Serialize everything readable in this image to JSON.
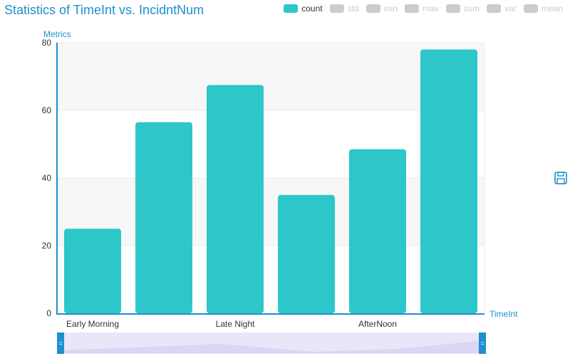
{
  "chart_data": {
    "type": "bar",
    "title": "Statistics of TimeInt vs. IncidntNum",
    "xlabel": "TimeInt",
    "ylabel": "Metrics",
    "categories": [
      "Early Morning",
      "",
      "Late Night",
      "",
      "AfterNoon",
      ""
    ],
    "series": [
      {
        "name": "count",
        "values": [
          25,
          56.5,
          67.5,
          35,
          48.5,
          78
        ]
      }
    ],
    "ylim": [
      0,
      80
    ],
    "yticks": [
      0,
      20,
      40,
      60,
      80
    ],
    "grid": true,
    "legend_position": "top-right"
  },
  "legend": {
    "items": [
      {
        "label": "count",
        "active": true
      },
      {
        "label": "std",
        "active": false
      },
      {
        "label": "min",
        "active": false
      },
      {
        "label": "max",
        "active": false
      },
      {
        "label": "sum",
        "active": false
      },
      {
        "label": "var",
        "active": false
      },
      {
        "label": "mean",
        "active": false
      }
    ]
  },
  "colors": {
    "bar": "#2ec7c9",
    "axis": "#1e8fd0",
    "inactive": "#cccccc",
    "band": "#f7f7f7",
    "zoom_fill": "#e8e6f8",
    "zoom_handle": "#1e8fd0"
  },
  "toolbar": {
    "save_icon": "save-icon"
  }
}
